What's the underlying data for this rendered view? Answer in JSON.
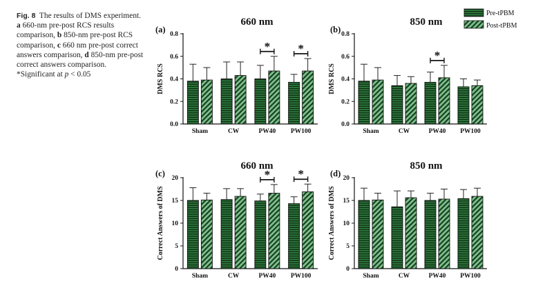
{
  "caption": {
    "fig_label": "Fig. 8",
    "intro": "The results of DMS experiment.",
    "a_letter": "a",
    "a_text": "660-nm pre-post RCS results comparison,",
    "b_letter": "b",
    "b_text": "850-nm pre-post RCS comparison,",
    "c_letter": "c",
    "c_text": "660 nm pre-post correct answers comparison,",
    "d_letter": "d",
    "d_text": "850-nm pre-post correct answers comparison.",
    "sig_prefix": "*Significant at",
    "sig_p": "p",
    "sig_rest": "< 0.05"
  },
  "legend": {
    "pre": "Pre-tPBM",
    "post": "Post-tPBM"
  },
  "colors": {
    "bar_fill": "#2f7a3d",
    "stripe": "#0b2a12",
    "post_fill": "#7fbf8c",
    "axis": "#111111"
  },
  "chart_data": [
    {
      "type": "bar",
      "panel": "(a)",
      "title": "660 nm",
      "ylabel": "DMS RCS",
      "categories": [
        "Sham",
        "CW",
        "PW40",
        "PW100"
      ],
      "ylim": [
        0,
        0.8
      ],
      "yticks": [
        "0.0",
        "0.2",
        "0.4",
        "0.6",
        "0.8"
      ],
      "tick_values": [
        0,
        0.2,
        0.4,
        0.6,
        0.8
      ],
      "series": [
        {
          "name": "Pre-tPBM",
          "values": [
            0.38,
            0.4,
            0.4,
            0.37
          ],
          "errors": [
            0.15,
            0.15,
            0.12,
            0.07
          ]
        },
        {
          "name": "Post-tPBM",
          "values": [
            0.39,
            0.43,
            0.47,
            0.47
          ],
          "errors": [
            0.11,
            0.12,
            0.13,
            0.11
          ]
        }
      ],
      "significance": [
        {
          "category": "PW40",
          "label": "*"
        },
        {
          "category": "PW100",
          "label": "*"
        }
      ]
    },
    {
      "type": "bar",
      "panel": "(b)",
      "title": "850 nm",
      "ylabel": "DMS RCS",
      "categories": [
        "Sham",
        "CW",
        "PW40",
        "PW100"
      ],
      "ylim": [
        0,
        0.8
      ],
      "yticks": [
        "0.0",
        "0.2",
        "0.4",
        "0.6",
        "0.8"
      ],
      "tick_values": [
        0,
        0.2,
        0.4,
        0.6,
        0.8
      ],
      "series": [
        {
          "name": "Pre-tPBM",
          "values": [
            0.38,
            0.34,
            0.37,
            0.33
          ],
          "errors": [
            0.15,
            0.09,
            0.09,
            0.07
          ]
        },
        {
          "name": "Post-tPBM",
          "values": [
            0.39,
            0.36,
            0.41,
            0.34
          ],
          "errors": [
            0.11,
            0.06,
            0.11,
            0.05
          ]
        }
      ],
      "significance": [
        {
          "category": "PW40",
          "label": "*"
        }
      ]
    },
    {
      "type": "bar",
      "panel": "(c)",
      "title": "660 nm",
      "ylabel": "Correct Answers of DMS",
      "categories": [
        "Sham",
        "CW",
        "PW40",
        "PW100"
      ],
      "ylim": [
        0,
        20
      ],
      "yticks": [
        "0",
        "5",
        "10",
        "15",
        "20"
      ],
      "tick_values": [
        0,
        5,
        10,
        15,
        20
      ],
      "series": [
        {
          "name": "Pre-tPBM",
          "values": [
            15.0,
            15.2,
            14.9,
            14.3
          ],
          "errors": [
            2.8,
            2.4,
            1.5,
            1.5
          ]
        },
        {
          "name": "Post-tPBM",
          "values": [
            15.1,
            15.9,
            16.6,
            16.9
          ],
          "errors": [
            1.5,
            1.7,
            1.9,
            1.7
          ]
        }
      ],
      "significance": [
        {
          "category": "PW40",
          "label": "*"
        },
        {
          "category": "PW100",
          "label": "*"
        }
      ]
    },
    {
      "type": "bar",
      "panel": "(d)",
      "title": "850 nm",
      "ylabel": "Correct Answers of DMS",
      "categories": [
        "Sham",
        "CW",
        "PW40",
        "PW100"
      ],
      "ylim": [
        0,
        20
      ],
      "yticks": [
        "0",
        "5",
        "10",
        "15",
        "20"
      ],
      "tick_values": [
        0,
        5,
        10,
        15,
        20
      ],
      "series": [
        {
          "name": "Pre-tPBM",
          "values": [
            15.0,
            13.6,
            15.0,
            15.4
          ],
          "errors": [
            2.7,
            3.5,
            1.6,
            2.0
          ]
        },
        {
          "name": "Post-tPBM",
          "values": [
            15.1,
            15.6,
            15.3,
            15.9
          ],
          "errors": [
            1.5,
            1.5,
            2.2,
            1.8
          ]
        }
      ],
      "significance": []
    }
  ]
}
